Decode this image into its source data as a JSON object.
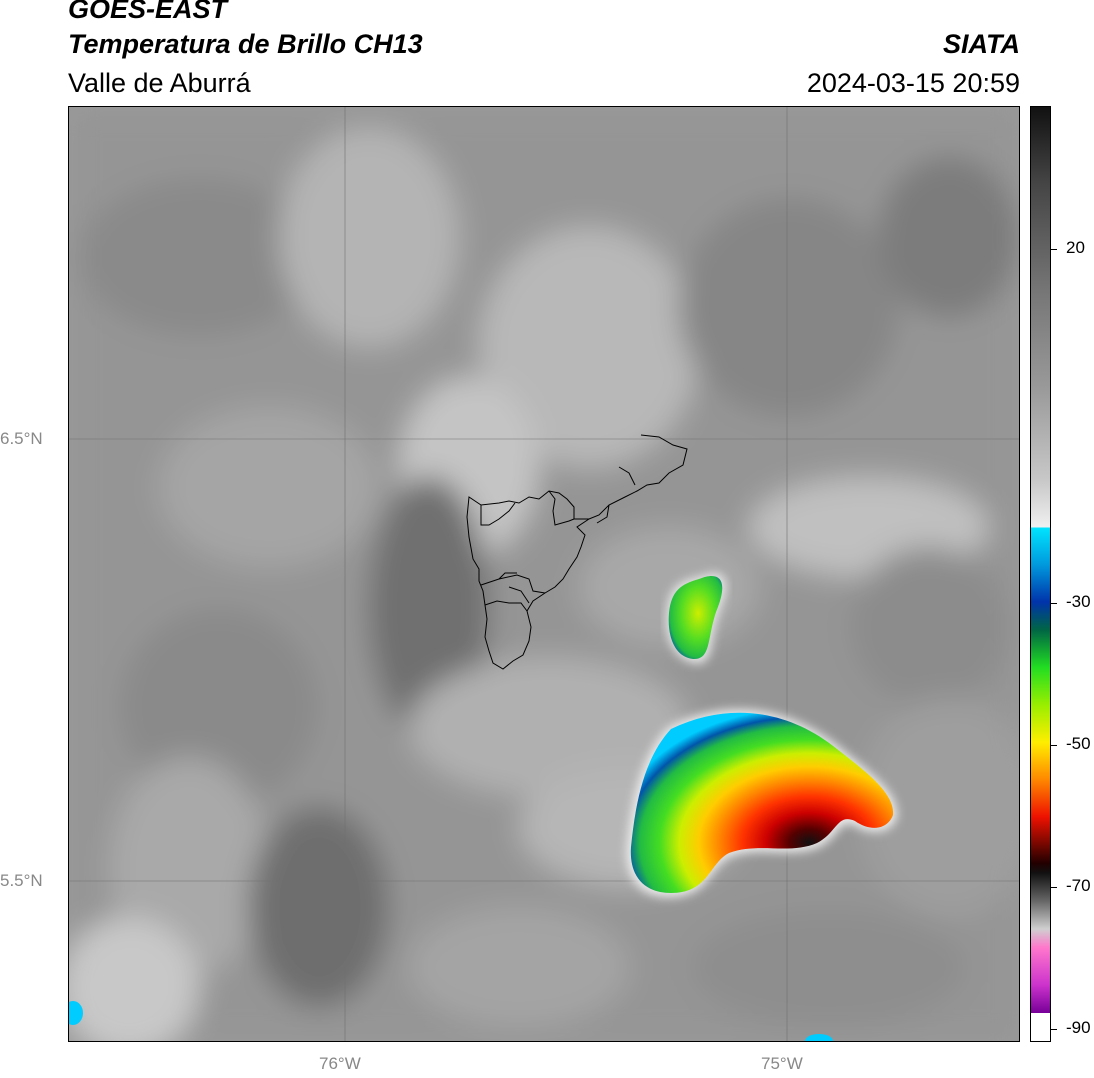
{
  "header": {
    "line1": "GOES-EAST",
    "line2": "Temperatura de Brillo CH13",
    "line3": "Valle de Aburrá",
    "org": "SIATA",
    "datetime": "2024-03-15 20:59"
  },
  "axes": {
    "lat_labels": [
      "6.5°N",
      "5.5°N"
    ],
    "lon_labels": [
      "76°W",
      "75°W"
    ]
  },
  "colorbar": {
    "ticks": [
      "20",
      "-30",
      "-50",
      "-70",
      "-90"
    ],
    "colors": {
      "cyan": "#00e5ff",
      "blue": "#0033aa",
      "green": "#22dd22",
      "yellow": "#ffee00",
      "orange": "#ff8800",
      "red": "#ee1100",
      "dark": "#220000",
      "magenta": "#cc33cc",
      "purple": "#770099"
    }
  }
}
